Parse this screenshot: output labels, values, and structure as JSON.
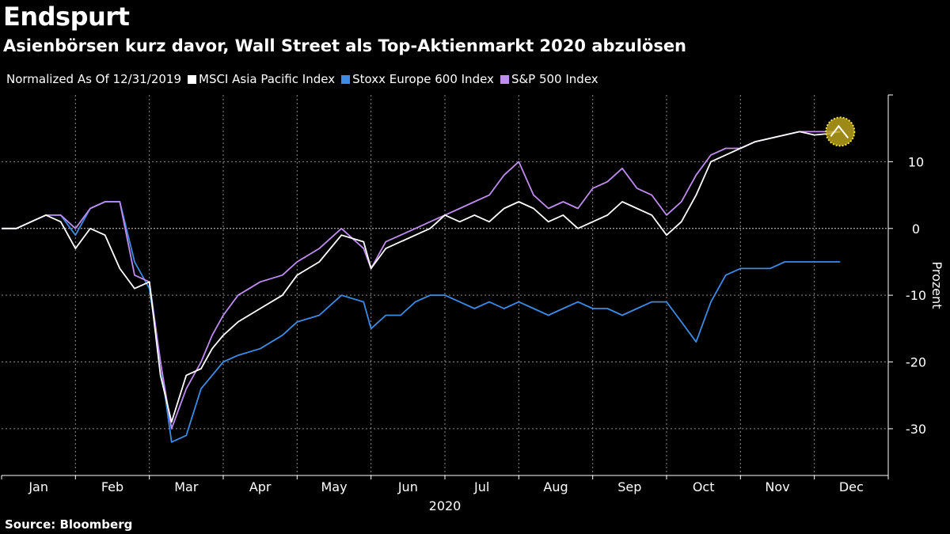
{
  "title": "Endspurt",
  "subtitle": "Asienbörsen kurz davor, Wall Street als Top-Aktienmarkt 2020 abzulösen",
  "legend_note": "Normalized As Of 12/31/2019",
  "source": "Source: Bloomberg",
  "chart_data": {
    "type": "line",
    "title": "Endspurt",
    "subtitle": "Asienbörsen kurz davor, Wall Street als Top-Aktienmarkt 2020 abzulösen",
    "xlabel": "2020",
    "ylabel": "Prozent",
    "x_ticks": [
      "Jan",
      "Feb",
      "Mar",
      "Apr",
      "May",
      "Jun",
      "Jul",
      "Aug",
      "Sep",
      "Oct",
      "Nov",
      "Dec"
    ],
    "y_ticks": [
      10,
      0,
      -10,
      -20,
      -30
    ],
    "ylim": [
      -37,
      20
    ],
    "xlim": [
      0,
      12
    ],
    "x_unit": "month of 2020 (0 = Jan 1, 12 = Dec 31)",
    "grid": true,
    "legend_position": "top-left",
    "series": [
      {
        "name": "MSCI Asia Pacific Index",
        "color": "#ffffff",
        "x": [
          0,
          0.2,
          0.4,
          0.6,
          0.8,
          1.0,
          1.2,
          1.4,
          1.6,
          1.8,
          2.0,
          2.15,
          2.3,
          2.5,
          2.7,
          2.85,
          3.0,
          3.2,
          3.5,
          3.8,
          4.0,
          4.3,
          4.6,
          4.9,
          5.0,
          5.2,
          5.4,
          5.6,
          5.8,
          6.0,
          6.2,
          6.4,
          6.6,
          6.8,
          7.0,
          7.2,
          7.4,
          7.6,
          7.8,
          8.0,
          8.2,
          8.4,
          8.6,
          8.8,
          9.0,
          9.2,
          9.4,
          9.6,
          9.8,
          10.0,
          10.2,
          10.4,
          10.6,
          10.8,
          11.0,
          11.2,
          11.35
        ],
        "y": [
          0,
          0,
          1,
          2,
          1,
          -3,
          0,
          -1,
          -6,
          -9,
          -8,
          -22,
          -29,
          -22,
          -21,
          -18,
          -16,
          -14,
          -12,
          -10,
          -7,
          -5,
          -1,
          -2,
          -6,
          -3,
          -2,
          -1,
          0,
          2,
          1,
          2,
          1,
          3,
          4,
          3,
          1,
          2,
          0,
          1,
          2,
          4,
          3,
          2,
          -1,
          1,
          5,
          10,
          11,
          12,
          13,
          13.5,
          14,
          14.5,
          14,
          14.2,
          14.5
        ],
        "endpoint_marker": true
      },
      {
        "name": "Stoxx Europe 600 Index",
        "color": "#3c8ce6",
        "x": [
          0,
          0.2,
          0.4,
          0.6,
          0.8,
          1.0,
          1.2,
          1.4,
          1.6,
          1.8,
          2.0,
          2.15,
          2.3,
          2.5,
          2.7,
          2.85,
          3.0,
          3.2,
          3.5,
          3.8,
          4.0,
          4.3,
          4.6,
          4.9,
          5.0,
          5.2,
          5.4,
          5.6,
          5.8,
          6.0,
          6.2,
          6.4,
          6.6,
          6.8,
          7.0,
          7.2,
          7.4,
          7.6,
          7.8,
          8.0,
          8.2,
          8.4,
          8.6,
          8.8,
          9.0,
          9.2,
          9.4,
          9.6,
          9.8,
          10.0,
          10.2,
          10.4,
          10.6,
          10.8,
          11.0,
          11.2,
          11.35
        ],
        "y": [
          0,
          0,
          1,
          2,
          2,
          -1,
          3,
          4,
          4,
          -5,
          -9,
          -20,
          -32,
          -31,
          -24,
          -22,
          -20,
          -19,
          -18,
          -16,
          -14,
          -13,
          -10,
          -11,
          -15,
          -13,
          -13,
          -11,
          -10,
          -10,
          -11,
          -12,
          -11,
          -12,
          -11,
          -12,
          -13,
          -12,
          -11,
          -12,
          -12,
          -13,
          -12,
          -11,
          -11,
          -14,
          -17,
          -11,
          -7,
          -6,
          -6,
          -6,
          -5,
          -5,
          -5,
          -5,
          -5
        ],
        "endpoint_marker": false
      },
      {
        "name": "S&P 500 Index",
        "color": "#bf8cf0",
        "x": [
          0,
          0.2,
          0.4,
          0.6,
          0.8,
          1.0,
          1.2,
          1.4,
          1.6,
          1.8,
          2.0,
          2.15,
          2.3,
          2.5,
          2.7,
          2.85,
          3.0,
          3.2,
          3.5,
          3.8,
          4.0,
          4.3,
          4.6,
          4.9,
          5.0,
          5.2,
          5.4,
          5.6,
          5.8,
          6.0,
          6.2,
          6.4,
          6.6,
          6.8,
          7.0,
          7.2,
          7.4,
          7.6,
          7.8,
          8.0,
          8.2,
          8.4,
          8.6,
          8.8,
          9.0,
          9.2,
          9.4,
          9.6,
          9.8,
          10.0,
          10.2,
          10.4,
          10.6,
          10.8,
          11.0,
          11.2,
          11.35
        ],
        "y": [
          0,
          0,
          1,
          2,
          2,
          0,
          3,
          4,
          4,
          -7,
          -8,
          -20,
          -30,
          -24,
          -20,
          -16,
          -13,
          -10,
          -8,
          -7,
          -5,
          -3,
          0,
          -3,
          -6,
          -2,
          -1,
          0,
          1,
          2,
          3,
          4,
          5,
          8,
          10,
          5,
          3,
          4,
          3,
          6,
          7,
          9,
          6,
          5,
          2,
          4,
          8,
          11,
          12,
          12,
          13,
          13.5,
          14,
          14.5,
          14.5,
          14.5,
          14.5
        ],
        "endpoint_marker": false
      }
    ]
  }
}
